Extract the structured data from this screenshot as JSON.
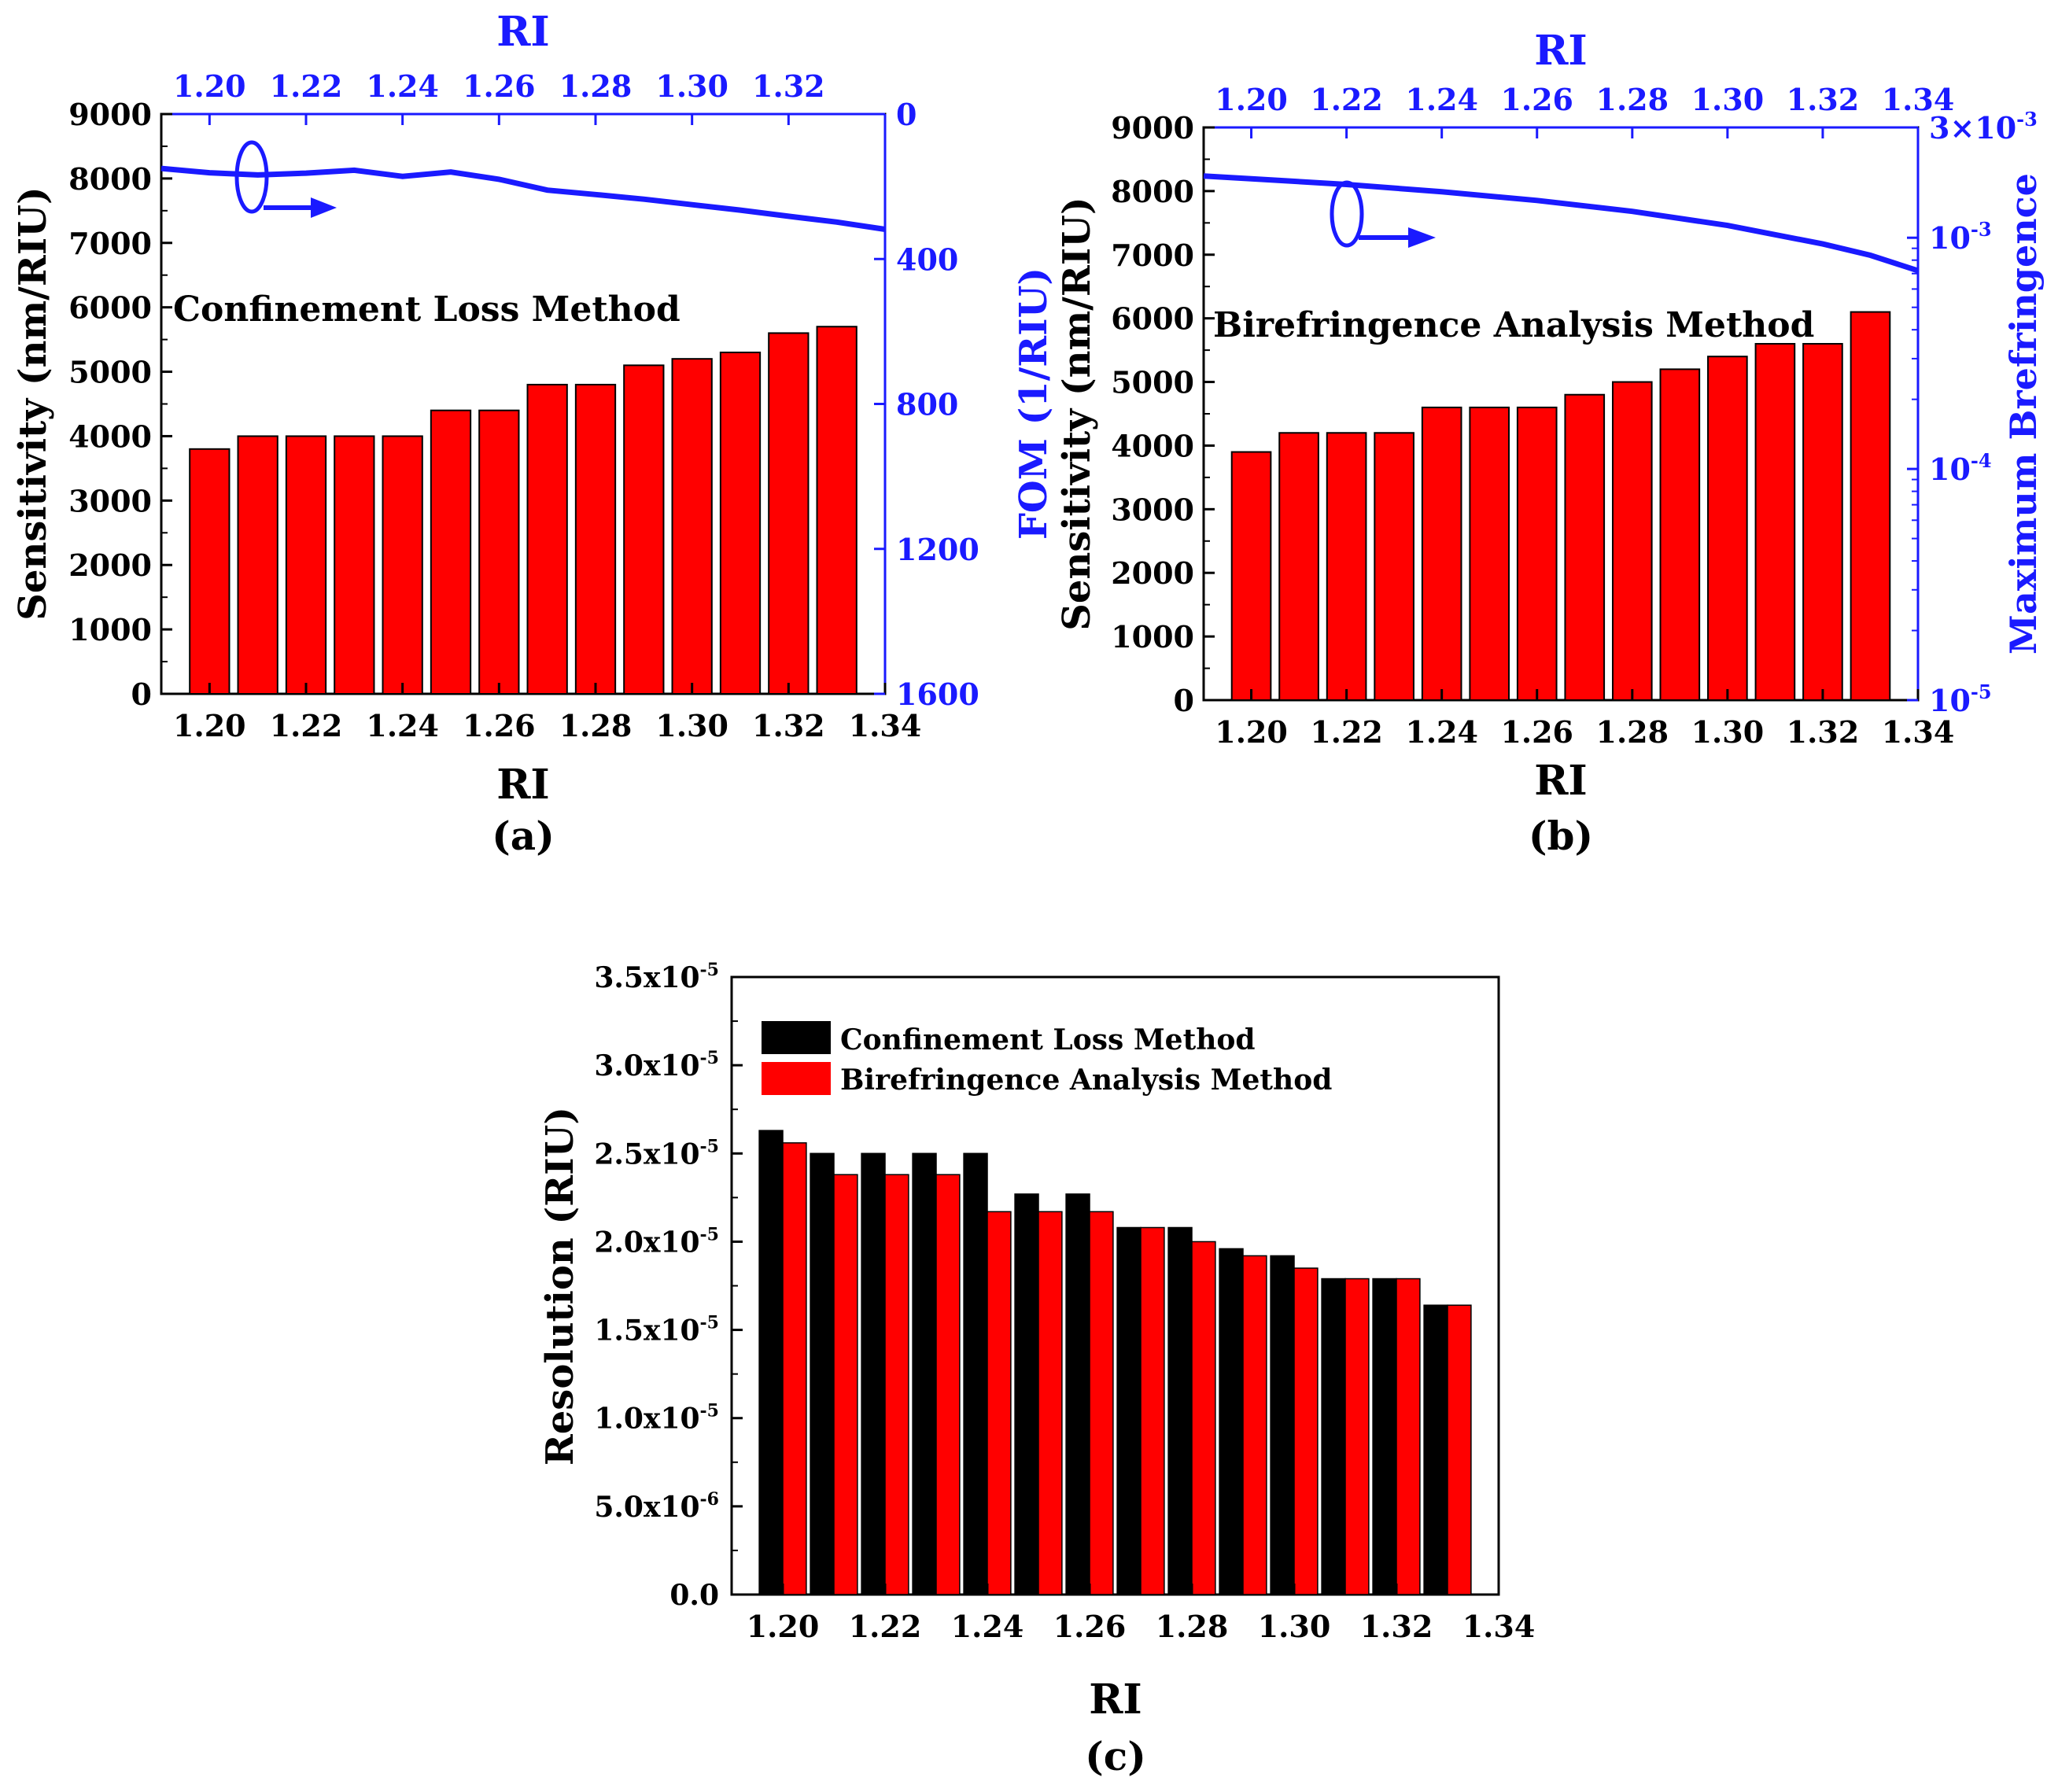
{
  "colors": {
    "bar_red": "#ff0000",
    "bar_black": "#000000",
    "accent_blue": "#1a1aff",
    "axis": "#000000"
  },
  "chart_data": [
    {
      "panel": "a",
      "type": "bar",
      "caption": "(a)",
      "annotation": "Confinement Loss Method",
      "categories": [
        1.2,
        1.21,
        1.22,
        1.23,
        1.24,
        1.25,
        1.26,
        1.27,
        1.28,
        1.29,
        1.3,
        1.31,
        1.32,
        1.33
      ],
      "values": [
        3800,
        4000,
        4000,
        4000,
        4000,
        4400,
        4400,
        4800,
        4800,
        5100,
        5200,
        5300,
        5600,
        5700
      ],
      "xlabel": "RI",
      "xlim": [
        1.19,
        1.34
      ],
      "xticks": [
        "1.20",
        "1.22",
        "1.24",
        "1.26",
        "1.28",
        "1.30",
        "1.32",
        "1.34"
      ],
      "top_xlabel": "RI",
      "top_xticks": [
        "1.20",
        "1.22",
        "1.24",
        "1.26",
        "1.28",
        "1.30",
        "1.32"
      ],
      "ylabel": "Sensitivity (nm/RIU)",
      "ylim": [
        0,
        9000
      ],
      "yticks": [
        "0",
        "1000",
        "2000",
        "3000",
        "4000",
        "5000",
        "6000",
        "7000",
        "8000",
        "9000"
      ],
      "right_ylabel": "FOM (1/RIU)",
      "right_ylim": [
        0,
        1600
      ],
      "right_yticks": [
        "0",
        "400",
        "800",
        "1200",
        "1600"
      ],
      "right_series": {
        "name": "FOM",
        "x": [
          1.19,
          1.2,
          1.21,
          1.22,
          1.23,
          1.24,
          1.25,
          1.26,
          1.27,
          1.28,
          1.29,
          1.3,
          1.31,
          1.32,
          1.33,
          1.34
        ],
        "values": [
          150,
          162,
          168,
          163,
          155,
          172,
          160,
          180,
          210,
          222,
          235,
          250,
          265,
          282,
          298,
          318
        ]
      }
    },
    {
      "panel": "b",
      "type": "bar",
      "caption": "(b)",
      "annotation": "Birefringence Analysis Method",
      "categories": [
        1.2,
        1.21,
        1.22,
        1.23,
        1.24,
        1.25,
        1.26,
        1.27,
        1.28,
        1.29,
        1.3,
        1.31,
        1.32,
        1.33
      ],
      "values": [
        3900,
        4200,
        4200,
        4200,
        4600,
        4600,
        4600,
        4800,
        5000,
        5200,
        5400,
        5600,
        5600,
        6100
      ],
      "xlabel": "RI",
      "xlim": [
        1.19,
        1.34
      ],
      "xticks": [
        "1.20",
        "1.22",
        "1.24",
        "1.26",
        "1.28",
        "1.30",
        "1.32",
        "1.34"
      ],
      "top_xlabel": "RI",
      "top_xticks": [
        "1.20",
        "1.22",
        "1.24",
        "1.26",
        "1.28",
        "1.30",
        "1.32",
        "1.34"
      ],
      "ylabel": "Sensitivity (nm/RIU)",
      "ylim": [
        0,
        9000
      ],
      "yticks": [
        "0",
        "1000",
        "2000",
        "3000",
        "4000",
        "5000",
        "6000",
        "7000",
        "8000",
        "9000"
      ],
      "right_ylabel": "Maximum Brefringence",
      "right_yscale": "log",
      "right_ylim": [
        1e-05,
        0.003
      ],
      "right_yticks": [
        {
          "mantissa": "3×10",
          "exp": "-3"
        },
        {
          "mantissa": "10",
          "exp": "-3"
        },
        {
          "mantissa": "10",
          "exp": "-4"
        },
        {
          "mantissa": "10",
          "exp": "-5"
        }
      ],
      "right_series": {
        "name": "Maximum Brefringence",
        "x": [
          1.19,
          1.2,
          1.22,
          1.24,
          1.26,
          1.28,
          1.3,
          1.32,
          1.33,
          1.34
        ],
        "values": [
          0.00185,
          0.0018,
          0.0017,
          0.00158,
          0.00145,
          0.0013,
          0.00113,
          0.00094,
          0.00084,
          0.00072
        ]
      }
    },
    {
      "panel": "c",
      "type": "bar",
      "caption": "(c)",
      "categories": [
        1.2,
        1.21,
        1.22,
        1.23,
        1.24,
        1.25,
        1.26,
        1.27,
        1.28,
        1.29,
        1.3,
        1.31,
        1.32,
        1.33
      ],
      "series": [
        {
          "name": "Confinement Loss Method",
          "color": "black",
          "values": [
            2.63e-05,
            2.5e-05,
            2.5e-05,
            2.5e-05,
            2.5e-05,
            2.27e-05,
            2.27e-05,
            2.08e-05,
            2.08e-05,
            1.96e-05,
            1.92e-05,
            1.79e-05,
            1.79e-05,
            1.64e-05
          ]
        },
        {
          "name": "Birefringence Analysis Method",
          "color": "red",
          "values": [
            2.56e-05,
            2.38e-05,
            2.38e-05,
            2.38e-05,
            2.17e-05,
            2.17e-05,
            2.17e-05,
            2.08e-05,
            2e-05,
            1.92e-05,
            1.85e-05,
            1.79e-05,
            1.79e-05,
            1.64e-05
          ]
        }
      ],
      "xlabel": "RI",
      "xlim": [
        1.19,
        1.34
      ],
      "xticks": [
        "1.20",
        "1.22",
        "1.24",
        "1.26",
        "1.28",
        "1.30",
        "1.32",
        "1.34"
      ],
      "ylabel": "Resolution (RIU)",
      "ylim": [
        0,
        3.5e-05
      ],
      "yticks": [
        {
          "mantissa": "0.0",
          "exp": ""
        },
        {
          "mantissa": "5.0x10",
          "exp": "-6"
        },
        {
          "mantissa": "1.0x10",
          "exp": "-5"
        },
        {
          "mantissa": "1.5x10",
          "exp": "-5"
        },
        {
          "mantissa": "2.0x10",
          "exp": "-5"
        },
        {
          "mantissa": "2.5x10",
          "exp": "-5"
        },
        {
          "mantissa": "3.0x10",
          "exp": "-5"
        },
        {
          "mantissa": "3.5x10",
          "exp": "-5"
        }
      ],
      "legend_position": "top-left"
    }
  ]
}
